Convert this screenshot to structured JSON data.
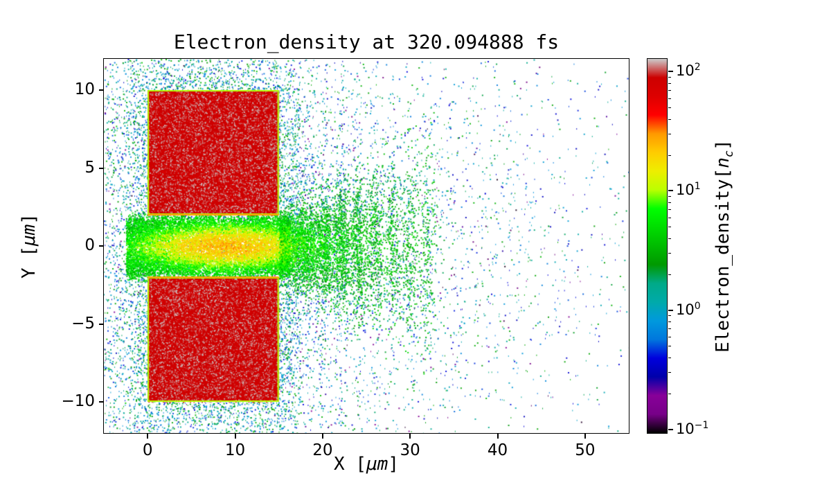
{
  "chart_data": {
    "type": "heatmap",
    "title": "Electron_density at 320.094888 fs",
    "time_fs": "320.094888",
    "xlabel_parts": {
      "prefix": "X [",
      "math": "μm",
      "suffix": "]"
    },
    "ylabel_parts": {
      "prefix": "Y [",
      "math": "μm",
      "suffix": "]"
    },
    "xlim": [
      -5,
      55
    ],
    "ylim": [
      -12,
      12
    ],
    "xticks": [
      0,
      10,
      20,
      30,
      40,
      50
    ],
    "xtick_labels": [
      "0",
      "10",
      "20",
      "30",
      "40",
      "50"
    ],
    "yticks": [
      10,
      5,
      0,
      -5,
      -10
    ],
    "ytick_labels": [
      "10",
      "5",
      "0",
      "−5",
      "−10"
    ],
    "grid": false,
    "colorbar": {
      "label_parts": {
        "prefix": "Electron_density[",
        "var": "n",
        "sub": "c",
        "suffix": "]"
      },
      "scale": "log",
      "vmin": 0.093,
      "vmax": 128,
      "major_ticks": [
        {
          "value": 100,
          "base": "10",
          "exp": "2"
        },
        {
          "value": 10,
          "base": "10",
          "exp": "1"
        },
        {
          "value": 1,
          "base": "10",
          "exp": "0"
        },
        {
          "value": 0.1,
          "base": "10",
          "exp": "−1"
        }
      ],
      "colormap": "nipy_spectral",
      "colormap_stops": [
        [
          0.0,
          "#000000"
        ],
        [
          0.05,
          "#770088"
        ],
        [
          0.1,
          "#880099"
        ],
        [
          0.15,
          "#0000AA"
        ],
        [
          0.2,
          "#0000DD"
        ],
        [
          0.25,
          "#0077DD"
        ],
        [
          0.3,
          "#0099DD"
        ],
        [
          0.35,
          "#00AAAA"
        ],
        [
          0.4,
          "#00AA88"
        ],
        [
          0.45,
          "#009900"
        ],
        [
          0.5,
          "#00BB00"
        ],
        [
          0.55,
          "#00DD00"
        ],
        [
          0.6,
          "#00FF00"
        ],
        [
          0.65,
          "#BBFF00"
        ],
        [
          0.7,
          "#EEEE00"
        ],
        [
          0.75,
          "#FFCC00"
        ],
        [
          0.8,
          "#FF9900"
        ],
        [
          0.85,
          "#FF0000"
        ],
        [
          0.9,
          "#DD0000"
        ],
        [
          0.95,
          "#CC0000"
        ],
        [
          1.0,
          "#CCCCCC"
        ]
      ]
    },
    "features": {
      "targets": [
        {
          "x0": 0,
          "x1": 15,
          "y0": 2,
          "y1": 10,
          "density_nc": 100
        },
        {
          "x0": 0,
          "x1": 15,
          "y0": -10,
          "y1": -2,
          "density_nc": 100
        }
      ],
      "channel": {
        "x0": -2,
        "x1": 15,
        "y0": -2,
        "y1": 2,
        "core_density_nc": 30
      },
      "jet": {
        "x_start": 15,
        "x_end": 33,
        "spread": "increasing"
      },
      "background_cloud_nc": [
        0.1,
        3
      ]
    }
  }
}
